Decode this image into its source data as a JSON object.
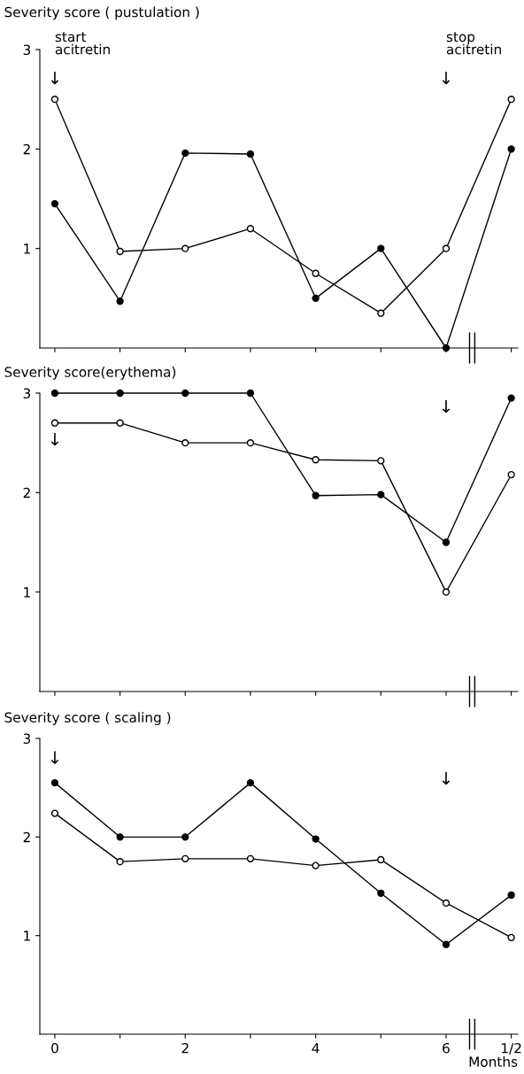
{
  "chart_data": [
    {
      "type": "line",
      "ylabel": "Severity score ( pustulation )",
      "categories": [
        null,
        null,
        null,
        null,
        null,
        null,
        null,
        null
      ],
      "ylim": [
        0,
        3
      ],
      "yticks": [
        1,
        2,
        3
      ],
      "marker": "circle",
      "series": [
        {
          "color": "#000000",
          "values": [
            1.45,
            0.47,
            1.96,
            1.95,
            0.5,
            1.0,
            0.0,
            2.0
          ]
        },
        {
          "color": "#000000",
          "values": [
            2.5,
            0.97,
            1.0,
            1.2,
            0.75,
            0.35,
            1.0,
            2.5
          ]
        }
      ],
      "annotations": [
        "start\nacitretin",
        "↓",
        "stop\nacitretin",
        "↓"
      ]
    },
    {
      "type": "line",
      "ylabel": "Severity score(erythema)",
      "categories": [
        null,
        null,
        null,
        null,
        null,
        null,
        null,
        null
      ],
      "ylim": [
        0,
        3
      ],
      "yticks": [
        1,
        2,
        3
      ],
      "marker": "circle",
      "series": [
        {
          "color": "#000000",
          "values": [
            3,
            3,
            3,
            3,
            1.97,
            1.98,
            1.5,
            2.95
          ]
        },
        {
          "color": "#000000",
          "values": [
            2.7,
            2.7,
            2.5,
            2.5,
            2.33,
            2.32,
            1.0,
            2.18
          ]
        }
      ],
      "annotations": [
        "↓",
        "↓"
      ]
    },
    {
      "type": "line",
      "ylabel": "Severity score ( scaling )",
      "xlabel": "Months",
      "categories": [
        "0",
        null,
        "2",
        null,
        "4",
        null,
        "6",
        "1/2"
      ],
      "ylim": [
        0,
        3
      ],
      "yticks": [
        1,
        2,
        3
      ],
      "marker": "circle",
      "series": [
        {
          "color": "#000000",
          "values": [
            2.55,
            2.0,
            2.0,
            2.55,
            1.98,
            1.43,
            0.91,
            1.41
          ]
        },
        {
          "color": "#000000",
          "values": [
            2.24,
            1.75,
            1.78,
            1.78,
            1.71,
            1.77,
            1.33,
            0.98
          ]
        }
      ],
      "annotations": [
        "↓",
        "↓"
      ]
    }
  ]
}
